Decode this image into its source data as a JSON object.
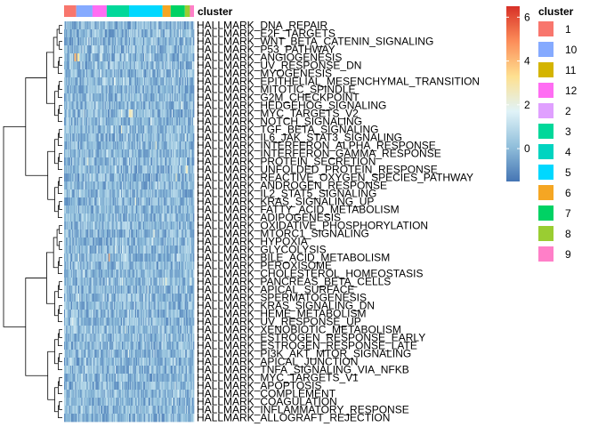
{
  "chart_data": {
    "type": "heatmap",
    "title": "",
    "xlabel": "",
    "ylabel": "",
    "annotation_label": "cluster",
    "rows": [
      "HALLMARK_DNA_REPAIR",
      "HALLMARK_E2F_TARGETS",
      "HALLMARK_WNT_BETA_CATENIN_SIGNALING",
      "HALLMARK_P53_PATHWAY",
      "HALLMARK_ANGIOGENESIS",
      "HALLMARK_UV_RESPONSE_DN",
      "HALLMARK_MYOGENESIS",
      "HALLMARK_EPITHELIAL_MESENCHYMAL_TRANSITION",
      "HALLMARK_MITOTIC_SPINDLE",
      "HALLMARK_G2M_CHECKPOINT",
      "HALLMARK_HEDGEHOG_SIGNALING",
      "HALLMARK_MYC_TARGETS_V2",
      "HALLMARK_NOTCH_SIGNALING",
      "HALLMARK_TGF_BETA_SIGNALING",
      "HALLMARK_IL6_JAK_STAT3_SIGNALING",
      "HALLMARK_INTERFERON_ALPHA_RESPONSE",
      "HALLMARK_INTERFERON_GAMMA_RESPONSE",
      "HALLMARK_PROTEIN_SECRETION",
      "HALLMARK_UNFOLDED_PROTEIN_RESPONSE",
      "HALLMARK_REACTIVE_OXYGEN_SPECIES_PATHWAY",
      "HALLMARK_ANDROGEN_RESPONSE",
      "HALLMARK_IL2_STAT5_SIGNALING",
      "HALLMARK_KRAS_SIGNALING_UP",
      "HALLMARK_FATTY_ACID_METABOLISM",
      "HALLMARK_ADIPOGENESIS",
      "HALLMARK_OXIDATIVE_PHOSPHORYLATION",
      "HALLMARK_MTORC1_SIGNALING",
      "HALLMARK_HYPOXIA",
      "HALLMARK_GLYCOLYSIS",
      "HALLMARK_BILE_ACID_METABOLISM",
      "HALLMARK_PEROXISOME",
      "HALLMARK_CHOLESTEROL_HOMEOSTASIS",
      "HALLMARK_PANCREAS_BETA_CELLS",
      "HALLMARK_APICAL_SURFACE",
      "HALLMARK_SPERMATOGENESIS",
      "HALLMARK_KRAS_SIGNALING_DN",
      "HALLMARK_HEME_METABOLISM",
      "HALLMARK_UV_RESPONSE_UP",
      "HALLMARK_XENOBIOTIC_METABOLISM",
      "HALLMARK_ESTROGEN_RESPONSE_EARLY",
      "HALLMARK_ESTROGEN_RESPONSE_LATE",
      "HALLMARK_PI3K_AKT_MTOR_SIGNALING",
      "HALLMARK_APICAL_JUNCTION",
      "HALLMARK_TNFA_SIGNALING_VIA_NFKB",
      "HALLMARK_MYC_TARGETS_V1",
      "HALLMARK_APOPTOSIS",
      "HALLMARK_COMPLEMENT",
      "HALLMARK_COAGULATION",
      "HALLMARK_INFLAMMATORY_RESPONSE",
      "HALLMARK_ALLOGRAFT_REJECTION"
    ],
    "color_scale": {
      "ticks": [
        0,
        2,
        4,
        6
      ],
      "range": [
        -1.5,
        6.5
      ],
      "colors": [
        "#4575b4",
        "#91bfdb",
        "#e0f3f8",
        "#fee090",
        "#fc8d59",
        "#d73027"
      ]
    },
    "cluster_segments": [
      {
        "cluster": "1",
        "cells": 12
      },
      {
        "cluster": "10",
        "cells": 16
      },
      {
        "cluster": "12",
        "cells": 14
      },
      {
        "cluster": "3",
        "cells": 22
      },
      {
        "cluster": "5",
        "cells": 33
      },
      {
        "cluster": "6",
        "cells": 8
      },
      {
        "cluster": "7",
        "cells": 14
      },
      {
        "cluster": "8",
        "cells": 5
      },
      {
        "cluster": "9",
        "cells": 4
      }
    ],
    "legend": {
      "title": "cluster",
      "position": "right",
      "entries": [
        {
          "label": "1",
          "color": "#F8766D"
        },
        {
          "label": "10",
          "color": "#85AAFF"
        },
        {
          "label": "11",
          "color": "#D4B400"
        },
        {
          "label": "12",
          "color": "#FF6DF3"
        },
        {
          "label": "2",
          "color": "#E0A0FF"
        },
        {
          "label": "3",
          "color": "#00D89A"
        },
        {
          "label": "4",
          "color": "#00D4C0"
        },
        {
          "label": "5",
          "color": "#00D8FF"
        },
        {
          "label": "6",
          "color": "#F5A623"
        },
        {
          "label": "7",
          "color": "#00D264"
        },
        {
          "label": "8",
          "color": "#9ACD32"
        },
        {
          "label": "9",
          "color": "#FF7FC8"
        }
      ]
    },
    "hot_cells": [
      {
        "row": 4,
        "col": 10,
        "value": 3.8
      },
      {
        "row": 4,
        "col": 11,
        "value": 4.3
      },
      {
        "row": 4,
        "col": 13,
        "value": 3.2
      },
      {
        "row": 4,
        "col": 14,
        "value": 2.9
      },
      {
        "row": 11,
        "col": 64,
        "value": 2.6
      },
      {
        "row": 11,
        "col": 65,
        "value": 2.7
      },
      {
        "row": 11,
        "col": 66,
        "value": 2.4
      },
      {
        "row": 11,
        "col": 67,
        "value": 2.2
      },
      {
        "row": 13,
        "col": 56,
        "value": 2.4
      },
      {
        "row": 15,
        "col": 90,
        "value": 2.3
      },
      {
        "row": 17,
        "col": 23,
        "value": 2.2
      },
      {
        "row": 18,
        "col": 120,
        "value": 2.5
      },
      {
        "row": 18,
        "col": 121,
        "value": 2.3
      },
      {
        "row": 19,
        "col": 110,
        "value": 2.4
      },
      {
        "row": 29,
        "col": 44,
        "value": 4.6
      },
      {
        "row": 22,
        "col": 70,
        "value": 2.2
      },
      {
        "row": 26,
        "col": 88,
        "value": 2.1
      },
      {
        "row": 32,
        "col": 100,
        "value": 2.3
      },
      {
        "row": 38,
        "col": 60,
        "value": 2.0
      },
      {
        "row": 45,
        "col": 130,
        "value": 2.2
      }
    ]
  }
}
